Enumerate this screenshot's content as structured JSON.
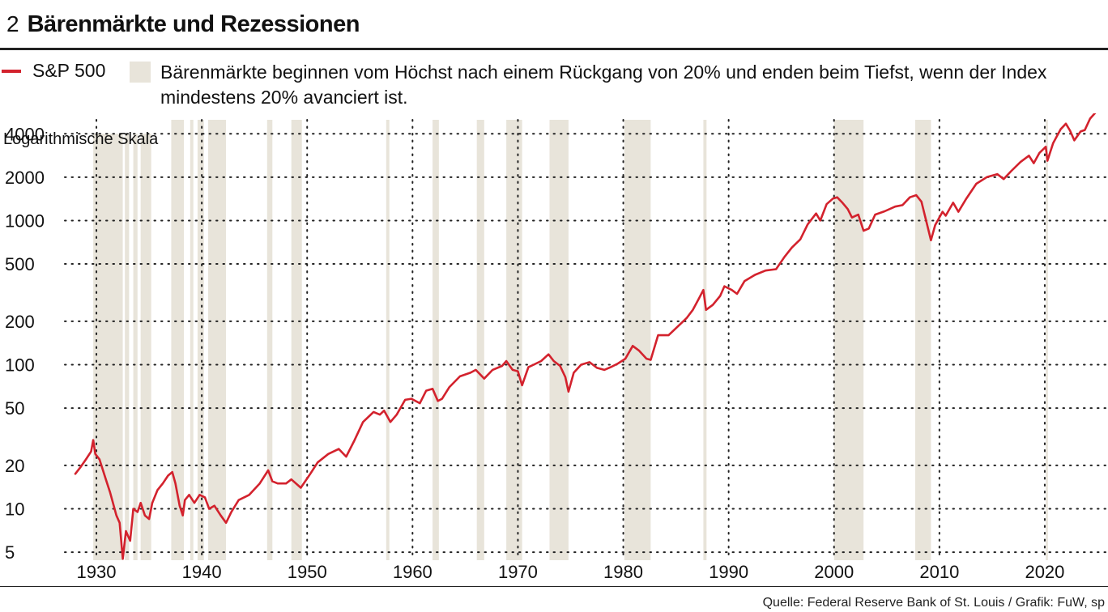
{
  "header": {
    "number": "2",
    "title": "Bärenmärkte und Rezessionen"
  },
  "legend": {
    "line_label": "S&P 500",
    "box_label": "Bärenmärkte beginnen vom Höchst nach einem Rückgang von 20% und enden beim Tiefst, wenn der Index mindestens 20% avanciert ist."
  },
  "source": "Quelle: Federal Reserve Bank of St. Louis / Grafik: FuW, sp",
  "colors": {
    "line": "#d3222d",
    "shade": "#e8e4da",
    "grid": "#222222",
    "rule": "#222222"
  },
  "chart_data": {
    "type": "line",
    "title": "Bärenmärkte und Rezessionen",
    "ylabel": "Logarithmische Skala",
    "yscale": "log",
    "xlim": [
      1927,
      2026
    ],
    "ylim": [
      4.4,
      5000
    ],
    "x_ticks": [
      1930,
      1940,
      1950,
      1960,
      1970,
      1980,
      1990,
      2000,
      2010,
      2020
    ],
    "x_tick_labels": [
      "1930",
      "1940",
      "1950",
      "1960",
      "1970",
      "1980",
      "1990",
      "2000",
      "2010",
      "2020"
    ],
    "y_ticks": [
      5,
      10,
      20,
      50,
      100,
      200,
      500,
      1000,
      2000,
      4000
    ],
    "y_tick_labels": [
      "5",
      "10",
      "20",
      "50",
      "100",
      "200",
      "500",
      "1000",
      "2000",
      "4000"
    ],
    "series": [
      {
        "name": "S&P 500",
        "x": [
          1928.0,
          1928.5,
          1929.0,
          1929.5,
          1929.7,
          1929.9,
          1930.3,
          1930.9,
          1931.3,
          1931.9,
          1932.2,
          1932.5,
          1932.8,
          1933.2,
          1933.5,
          1933.9,
          1934.2,
          1934.6,
          1935.0,
          1935.3,
          1935.8,
          1936.3,
          1936.8,
          1937.2,
          1937.5,
          1937.9,
          1938.2,
          1938.4,
          1938.8,
          1939.3,
          1939.8,
          1940.3,
          1940.7,
          1941.2,
          1941.8,
          1942.3,
          1942.8,
          1943.5,
          1944.5,
          1945.5,
          1946.3,
          1946.7,
          1947.2,
          1948.0,
          1948.5,
          1949.4,
          1950.3,
          1951.0,
          1952.0,
          1953.0,
          1953.7,
          1954.5,
          1955.3,
          1956.3,
          1956.9,
          1957.3,
          1957.9,
          1958.5,
          1959.3,
          1959.9,
          1960.7,
          1961.3,
          1961.9,
          1962.4,
          1962.8,
          1963.5,
          1964.5,
          1965.5,
          1966.0,
          1966.8,
          1967.6,
          1968.5,
          1968.9,
          1969.5,
          1970.0,
          1970.4,
          1971.0,
          1971.5,
          1972.2,
          1972.9,
          1973.4,
          1974.0,
          1974.5,
          1974.8,
          1975.3,
          1976.0,
          1976.8,
          1977.5,
          1978.2,
          1978.8,
          1979.5,
          1980.2,
          1980.9,
          1981.5,
          1982.2,
          1982.6,
          1983.3,
          1984.3,
          1985.2,
          1986.0,
          1986.6,
          1987.2,
          1987.6,
          1987.85,
          1988.5,
          1989.2,
          1989.6,
          1990.3,
          1990.8,
          1991.5,
          1992.5,
          1993.5,
          1994.5,
          1995.3,
          1996.0,
          1996.8,
          1997.5,
          1998.3,
          1998.7,
          1999.3,
          1999.9,
          2000.3,
          2000.8,
          2001.3,
          2001.7,
          2002.3,
          2002.8,
          2003.3,
          2003.9,
          2004.8,
          2005.8,
          2006.5,
          2007.2,
          2007.8,
          2008.3,
          2008.8,
          2009.2,
          2009.6,
          2010.3,
          2010.6,
          2011.3,
          2011.8,
          2012.5,
          2013.5,
          2014.5,
          2015.5,
          2016.1,
          2016.8,
          2017.7,
          2018.5,
          2018.95,
          2019.5,
          2020.1,
          2020.25,
          2020.8,
          2021.5,
          2022.0,
          2022.4,
          2022.8,
          2023.4,
          2023.8,
          2024.3,
          2024.8
        ],
        "values": [
          17.5,
          19.5,
          22.0,
          25.0,
          30.0,
          24.0,
          22.0,
          16.0,
          13.0,
          9.0,
          8.0,
          4.5,
          7.0,
          6.0,
          10.0,
          9.5,
          11.0,
          9.0,
          8.5,
          11.0,
          13.5,
          15.0,
          17.0,
          18.0,
          15.0,
          10.5,
          9.0,
          11.5,
          12.5,
          11.0,
          12.5,
          12.0,
          10.0,
          10.5,
          9.0,
          8.0,
          9.5,
          11.5,
          12.5,
          15.0,
          18.5,
          15.5,
          15.0,
          15.0,
          16.0,
          14.0,
          17.5,
          21.0,
          24.0,
          26.0,
          23.0,
          30.0,
          40.0,
          47.0,
          45.0,
          48.0,
          40.0,
          45.0,
          57.0,
          58.0,
          54.0,
          66.0,
          68.0,
          56.0,
          58.0,
          70.0,
          83.0,
          88.0,
          92.0,
          80.0,
          92.0,
          98.0,
          106.0,
          92.0,
          90.0,
          72.0,
          96.0,
          100.0,
          106.0,
          118.0,
          106.0,
          98.0,
          82.0,
          65.0,
          88.0,
          100.0,
          104.0,
          95.0,
          92.0,
          96.0,
          102.0,
          110.0,
          135.0,
          125.0,
          110.0,
          108.0,
          160.0,
          160.0,
          185.0,
          210.0,
          240.0,
          290.0,
          330.0,
          240.0,
          260.0,
          300.0,
          350.0,
          330.0,
          310.0,
          380.0,
          420.0,
          450.0,
          460.0,
          560.0,
          650.0,
          740.0,
          940.0,
          1120.0,
          1000.0,
          1300.0,
          1420.0,
          1450.0,
          1330.0,
          1200.0,
          1050.0,
          1100.0,
          850.0,
          880.0,
          1100.0,
          1160.0,
          1250.0,
          1280.0,
          1450.0,
          1500.0,
          1350.0,
          960.0,
          730.0,
          930.0,
          1150.0,
          1080.0,
          1330.0,
          1150.0,
          1400.0,
          1800.0,
          2000.0,
          2100.0,
          1940.0,
          2200.0,
          2550.0,
          2820.0,
          2500.0,
          2950.0,
          3250.0,
          2600.0,
          3450.0,
          4300.0,
          4700.0,
          4200.0,
          3600.0,
          4150.0,
          4250.0,
          5100.0,
          5600.0
        ]
      }
    ],
    "shaded_periods": [
      [
        1929.7,
        1932.5
      ],
      [
        1932.7,
        1933.1
      ],
      [
        1933.5,
        1933.9
      ],
      [
        1934.2,
        1935.2
      ],
      [
        1937.1,
        1938.3
      ],
      [
        1938.9,
        1939.2
      ],
      [
        1939.6,
        1940.2
      ],
      [
        1940.6,
        1942.3
      ],
      [
        1946.2,
        1946.7
      ],
      [
        1948.5,
        1949.5
      ],
      [
        1957.5,
        1957.8
      ],
      [
        1961.9,
        1962.5
      ],
      [
        1966.1,
        1966.8
      ],
      [
        1968.9,
        1970.4
      ],
      [
        1973.0,
        1974.8
      ],
      [
        1980.1,
        1982.6
      ],
      [
        1987.6,
        1987.9
      ],
      [
        2000.0,
        2002.8
      ],
      [
        2007.7,
        2009.2
      ],
      [
        2020.1,
        2020.3
      ]
    ]
  }
}
